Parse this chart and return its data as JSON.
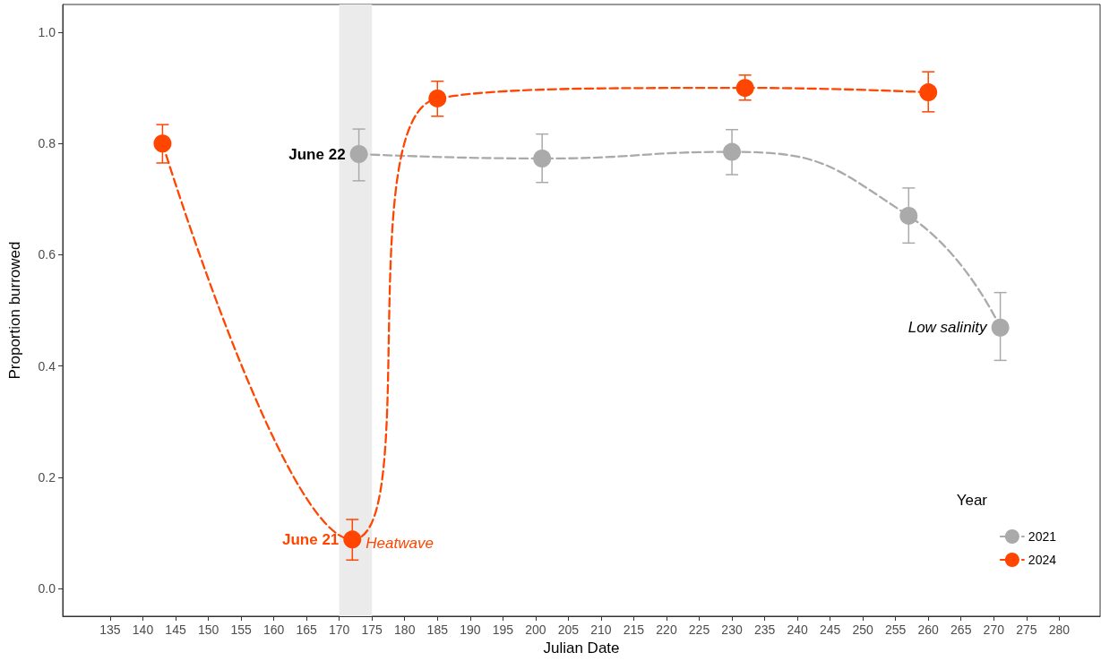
{
  "chart_data": {
    "type": "line",
    "xlabel": "Julian Date",
    "ylabel": "Proportion burrowed",
    "legend_title": "Year",
    "xlim": [
      127.75,
      286.25
    ],
    "ylim": [
      -0.05,
      1.05
    ],
    "xticks": [
      135,
      140,
      145,
      150,
      155,
      160,
      165,
      170,
      175,
      180,
      185,
      190,
      195,
      200,
      205,
      210,
      215,
      220,
      225,
      230,
      235,
      240,
      245,
      250,
      255,
      260,
      265,
      270,
      275,
      280
    ],
    "yticks": [
      {
        "value": 0,
        "label": "0.0"
      },
      {
        "value": 0.2,
        "label": "0.2"
      },
      {
        "value": 0.4,
        "label": "0.4"
      },
      {
        "value": 0.6,
        "label": "0.6"
      },
      {
        "value": 0.8,
        "label": "0.8"
      },
      {
        "value": 1,
        "label": "1.0"
      }
    ],
    "series": [
      {
        "name": "2021",
        "color": "#aaaaaa",
        "x": [
          173,
          201,
          230,
          257,
          271
        ],
        "values": [
          0.781,
          0.773,
          0.785,
          0.67,
          0.469
        ],
        "errors": [
          [
            0.733,
            0.826
          ],
          [
            0.73,
            0.817
          ],
          [
            0.744,
            0.825
          ],
          [
            0.621,
            0.72
          ],
          [
            0.41,
            0.532
          ]
        ]
      },
      {
        "name": "2024",
        "color": "#ff4500",
        "x": [
          143,
          172,
          185,
          232,
          260
        ],
        "values": [
          0.8,
          0.088,
          0.881,
          0.9,
          0.892
        ],
        "errors": [
          [
            0.765,
            0.834
          ],
          [
            0.051,
            0.124
          ],
          [
            0.849,
            0.912
          ],
          [
            0.878,
            0.923
          ],
          [
            0.857,
            0.929
          ]
        ]
      }
    ],
    "bands": [
      {
        "axis": "x",
        "from": 170,
        "to": 175,
        "color": "#ebebeb"
      }
    ],
    "annotations": [
      {
        "text": "June 22",
        "x": 173,
        "y": 0.781
      },
      {
        "text": "June 21",
        "x": 172,
        "y": 0.088
      },
      {
        "text": "Heatwave",
        "x": 172,
        "y": 0.088
      },
      {
        "text": "Low salinity",
        "x": 271,
        "y": 0.469
      }
    ],
    "legend": "bottom right",
    "marker": "circle",
    "line_style": "dashed",
    "grid": false
  }
}
